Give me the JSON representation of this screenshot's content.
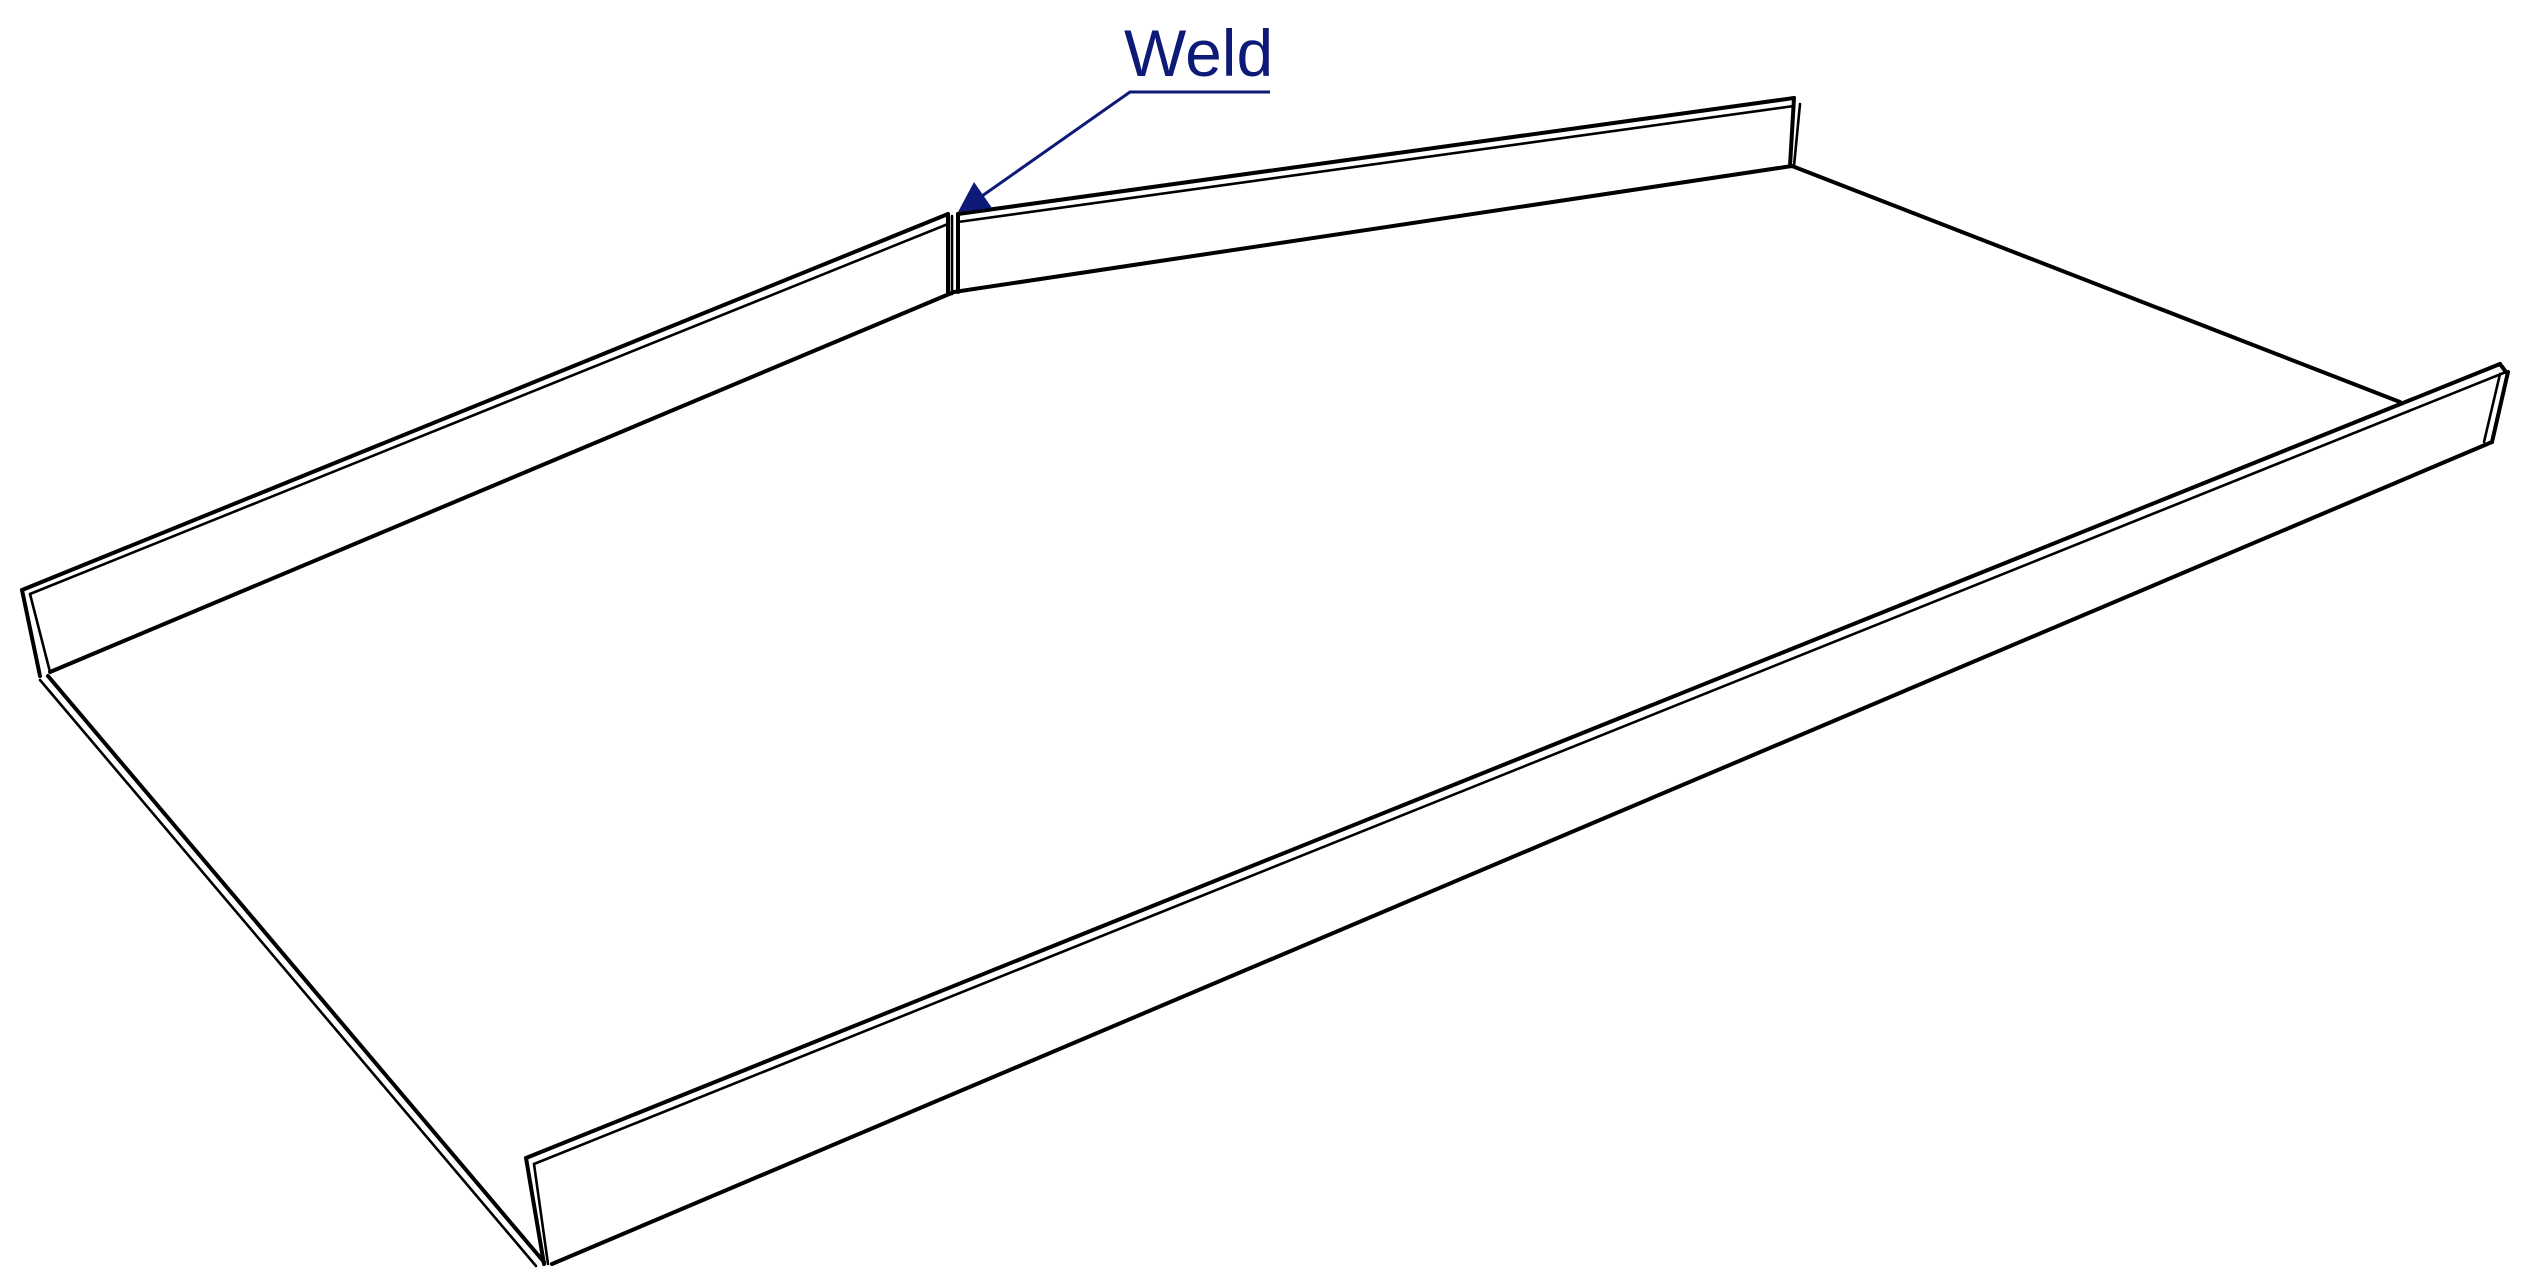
{
  "callout": {
    "label": "Weld",
    "color": "#0d1a78"
  },
  "line_color": "#000000"
}
